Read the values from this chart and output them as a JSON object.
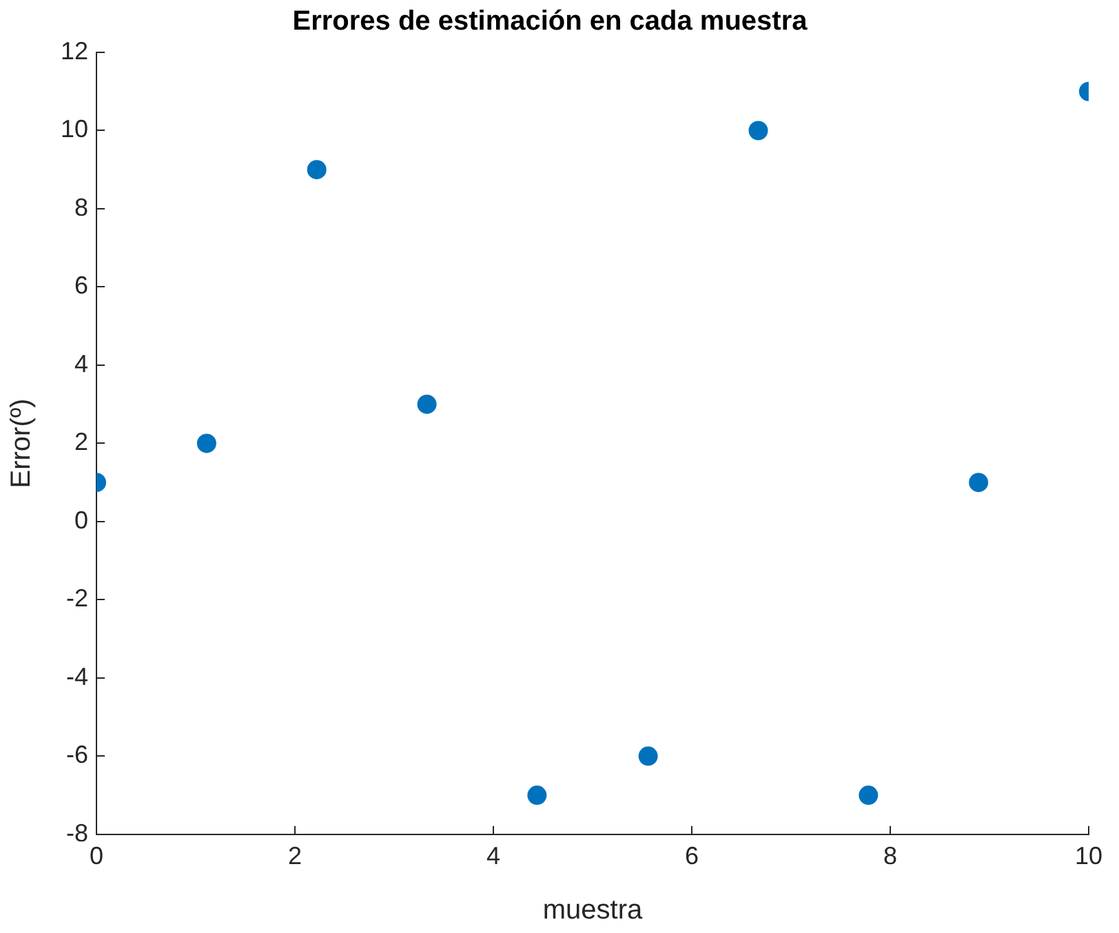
{
  "chart_data": {
    "type": "scatter",
    "title": "Errores de estimación en cada muestra",
    "xlabel": "muestra",
    "ylabel": "Error(º)",
    "x": [
      0,
      1.11,
      2.22,
      3.33,
      4.44,
      5.56,
      6.67,
      7.78,
      8.89,
      10
    ],
    "series": [
      {
        "color": "#0072bd",
        "values": [
          1,
          2,
          9,
          3,
          -7,
          -6,
          10,
          -7,
          1,
          11
        ]
      }
    ],
    "xlim": [
      0,
      10
    ],
    "xticks": [
      0,
      2,
      4,
      6,
      8,
      10
    ],
    "ylim": [
      -8,
      12
    ],
    "yticks": [
      -8,
      -6,
      -4,
      -2,
      0,
      2,
      4,
      6,
      8,
      10,
      12
    ],
    "grid": false,
    "legend": false,
    "marker": "circle"
  }
}
